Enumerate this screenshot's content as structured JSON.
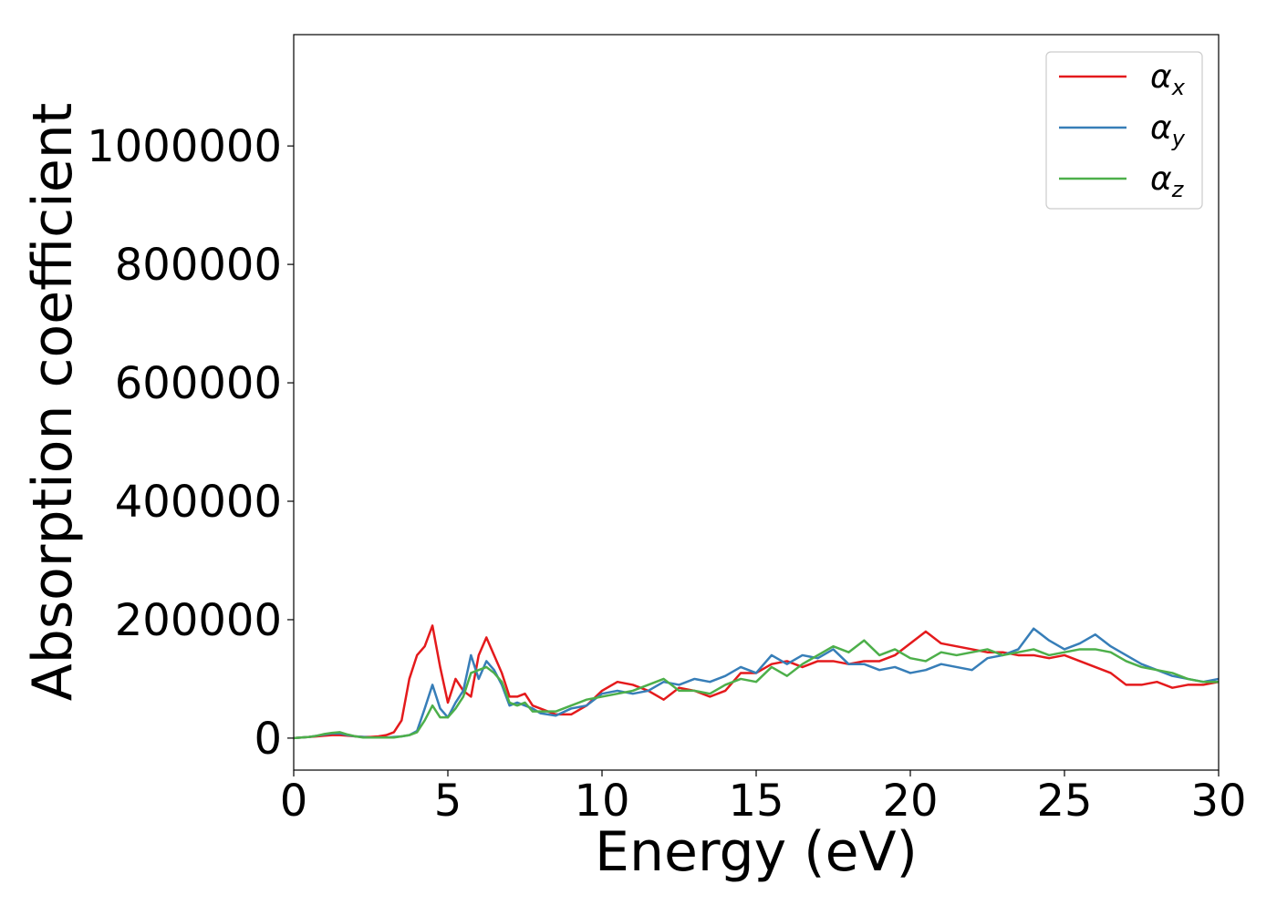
{
  "chart_data": {
    "type": "line",
    "xlabel": "Energy (eV)",
    "ylabel": "Absorption coefficient",
    "x": [
      0,
      0.25,
      0.5,
      0.75,
      1,
      1.25,
      1.5,
      1.75,
      2,
      2.25,
      2.5,
      2.75,
      3,
      3.25,
      3.5,
      3.75,
      4,
      4.25,
      4.5,
      4.75,
      5,
      5.25,
      5.5,
      5.75,
      6,
      6.25,
      6.5,
      6.75,
      7,
      7.25,
      7.5,
      7.75,
      8,
      8.5,
      9,
      9.5,
      10,
      10.5,
      11,
      11.5,
      12,
      12.5,
      13,
      13.5,
      14,
      14.5,
      15,
      15.5,
      16,
      16.5,
      17,
      17.5,
      18,
      18.5,
      19,
      19.5,
      20,
      20.5,
      21,
      21.5,
      22,
      22.5,
      23,
      23.5,
      24,
      24.5,
      25,
      25.5,
      26,
      26.5,
      27,
      27.5,
      28,
      28.5,
      29,
      29.5,
      30
    ],
    "series": [
      {
        "name": "αx",
        "color": "#e41a1c",
        "values": [
          0,
          1000,
          2000,
          3000,
          4000,
          5000,
          5000,
          4000,
          3000,
          2000,
          2000,
          3000,
          5000,
          10000,
          30000,
          100000,
          140000,
          155000,
          190000,
          120000,
          60000,
          100000,
          80000,
          70000,
          140000,
          170000,
          140000,
          110000,
          70000,
          70000,
          75000,
          55000,
          50000,
          40000,
          40000,
          55000,
          80000,
          95000,
          90000,
          80000,
          65000,
          85000,
          80000,
          70000,
          80000,
          110000,
          110000,
          125000,
          130000,
          120000,
          130000,
          130000,
          125000,
          130000,
          130000,
          140000,
          160000,
          180000,
          160000,
          155000,
          150000,
          145000,
          145000,
          140000,
          140000,
          135000,
          140000,
          130000,
          120000,
          110000,
          90000,
          90000,
          95000,
          85000,
          90000,
          90000,
          95000
        ]
      },
      {
        "name": "αy",
        "color": "#377eb8",
        "values": [
          0,
          1000,
          2000,
          4000,
          6000,
          8000,
          8000,
          5000,
          3000,
          2000,
          1000,
          1000,
          1000,
          2000,
          3000,
          5000,
          12000,
          50000,
          90000,
          50000,
          35000,
          60000,
          80000,
          140000,
          100000,
          130000,
          115000,
          90000,
          55000,
          60000,
          55000,
          50000,
          42000,
          38000,
          50000,
          55000,
          75000,
          80000,
          75000,
          80000,
          95000,
          90000,
          100000,
          95000,
          105000,
          120000,
          110000,
          140000,
          125000,
          140000,
          135000,
          150000,
          125000,
          125000,
          115000,
          120000,
          110000,
          115000,
          125000,
          120000,
          115000,
          135000,
          140000,
          150000,
          185000,
          165000,
          150000,
          160000,
          175000,
          155000,
          140000,
          125000,
          115000,
          105000,
          100000,
          95000,
          100000
        ]
      },
      {
        "name": "αz",
        "color": "#4daf4a",
        "values": [
          0,
          1000,
          2000,
          4000,
          7000,
          9000,
          10000,
          6000,
          3000,
          1000,
          1000,
          1000,
          1000,
          1000,
          3000,
          5000,
          10000,
          30000,
          55000,
          35000,
          35000,
          50000,
          70000,
          110000,
          115000,
          120000,
          110000,
          95000,
          60000,
          55000,
          60000,
          45000,
          45000,
          45000,
          55000,
          65000,
          70000,
          75000,
          80000,
          90000,
          100000,
          80000,
          80000,
          75000,
          90000,
          100000,
          95000,
          120000,
          105000,
          125000,
          140000,
          155000,
          145000,
          165000,
          140000,
          150000,
          135000,
          130000,
          145000,
          140000,
          145000,
          150000,
          140000,
          145000,
          150000,
          140000,
          145000,
          150000,
          150000,
          145000,
          130000,
          120000,
          115000,
          110000,
          100000,
          95000,
          95000
        ]
      }
    ],
    "xlim": [
      0,
      30
    ],
    "xticks": [
      0,
      5,
      10,
      15,
      20,
      25,
      30
    ],
    "ylim": [
      -54000,
      1188000
    ],
    "yticks": [
      0,
      200000,
      400000,
      600000,
      800000,
      1000000
    ],
    "legend": "upper right"
  }
}
